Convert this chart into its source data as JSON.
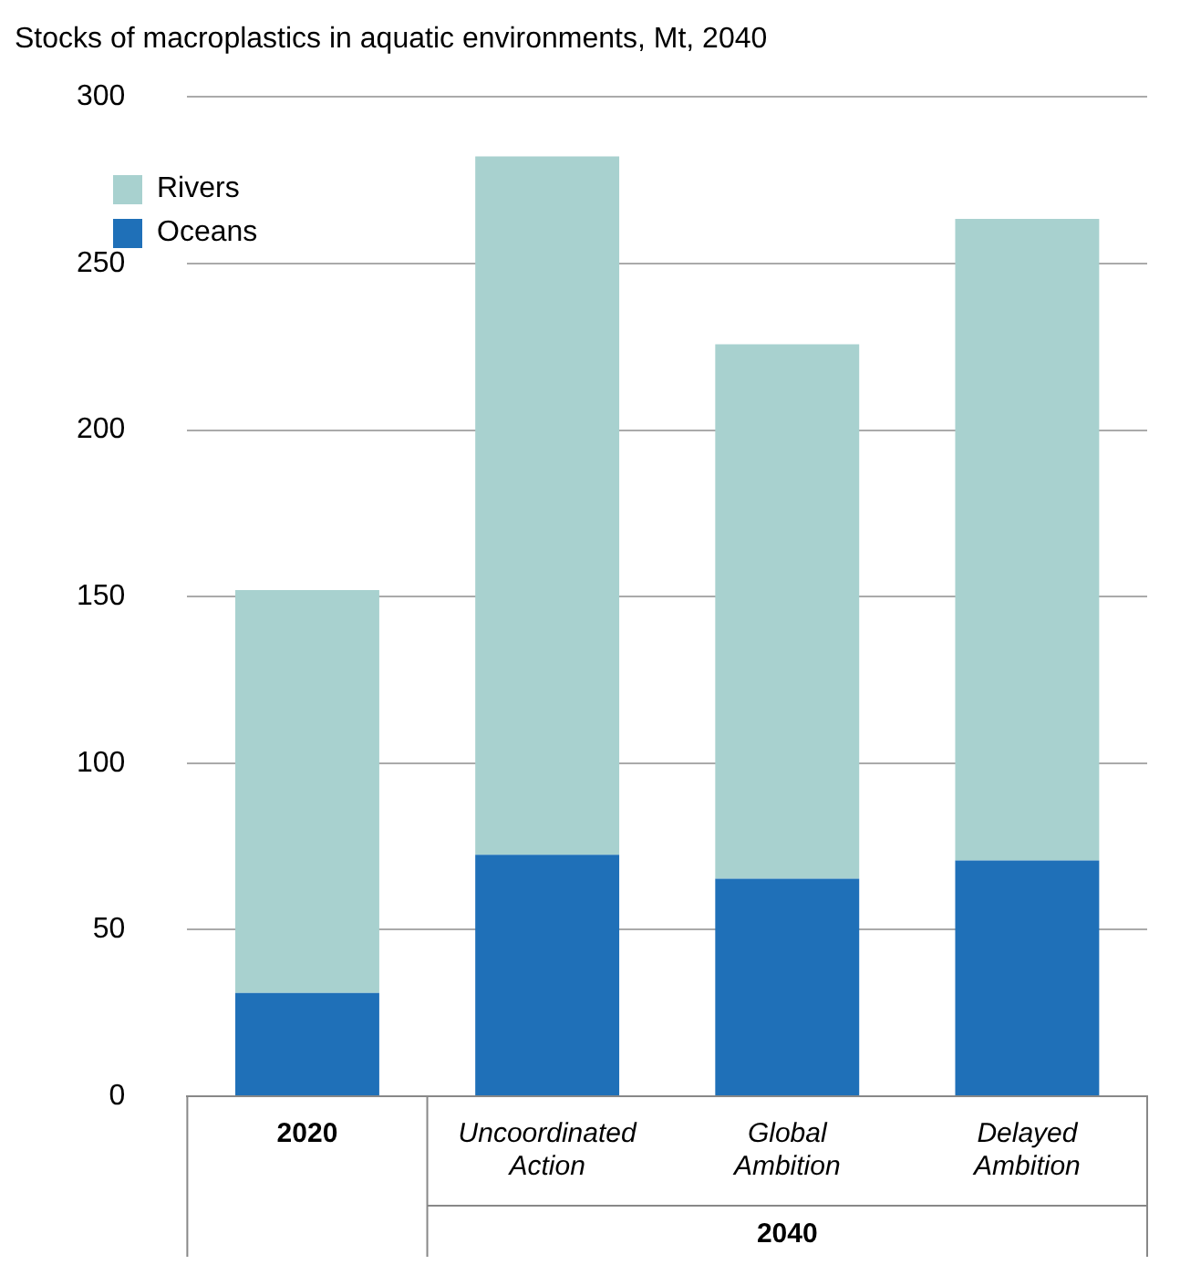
{
  "chart_data": {
    "type": "bar",
    "title": "Stocks of macroplastics in aquatic environments, Mt, 2040",
    "categories": [
      "2020",
      "Uncoordinated Action",
      "Global Ambition",
      "Delayed Ambition"
    ],
    "stacked": true,
    "series": [
      {
        "name": "Oceans",
        "color": "#1f70b8",
        "values": [
          31,
          72.5,
          65.3,
          70.8
        ]
      },
      {
        "name": "Rivers",
        "color": "#a8d1cf",
        "values": [
          121,
          209.7,
          160.5,
          192.6
        ]
      }
    ],
    "ylim": [
      0,
      300
    ],
    "yticks": [
      0,
      50,
      100,
      150,
      200,
      250,
      300
    ],
    "grid": "y",
    "legend": "top left",
    "annotations": [
      "2040"
    ]
  }
}
